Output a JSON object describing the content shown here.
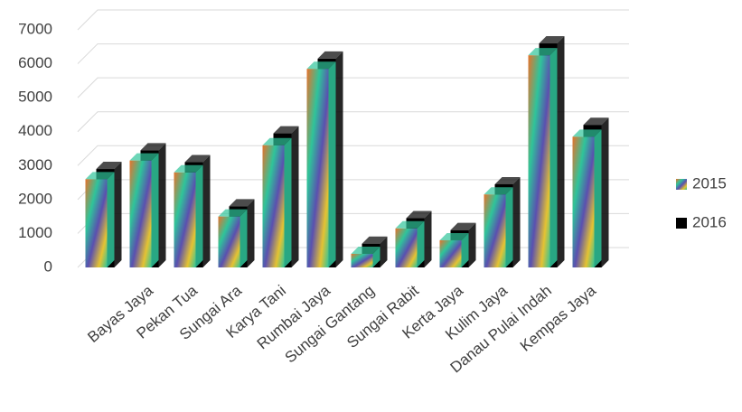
{
  "chart_data": {
    "type": "bar3d",
    "categories": [
      null,
      "Bayas Jaya",
      "Pekan Tua",
      "Sungai Ara",
      "Karya Tani",
      "Rumbai Jaya",
      "Sungai Gantang",
      "Sungai Rabit",
      "Kerta Jaya",
      "Kulim Jaya",
      "Danau Pulai Indah",
      "Kempas Jaya"
    ],
    "series": [
      {
        "name": "2015",
        "color": "#2fc49a",
        "values": [
          2600,
          3150,
          2800,
          1500,
          3600,
          5850,
          400,
          1150,
          800,
          2150,
          6250,
          3850
        ]
      },
      {
        "name": "2016",
        "color": "#000000",
        "values": [
          2900,
          3450,
          3100,
          1800,
          3950,
          6150,
          700,
          1450,
          1100,
          2450,
          6600,
          4200
        ]
      }
    ],
    "ylim": [
      0,
      7000
    ],
    "yticks": [
      0,
      1000,
      2000,
      3000,
      4000,
      5000,
      6000,
      7000
    ],
    "grid": true,
    "legend": "right"
  }
}
